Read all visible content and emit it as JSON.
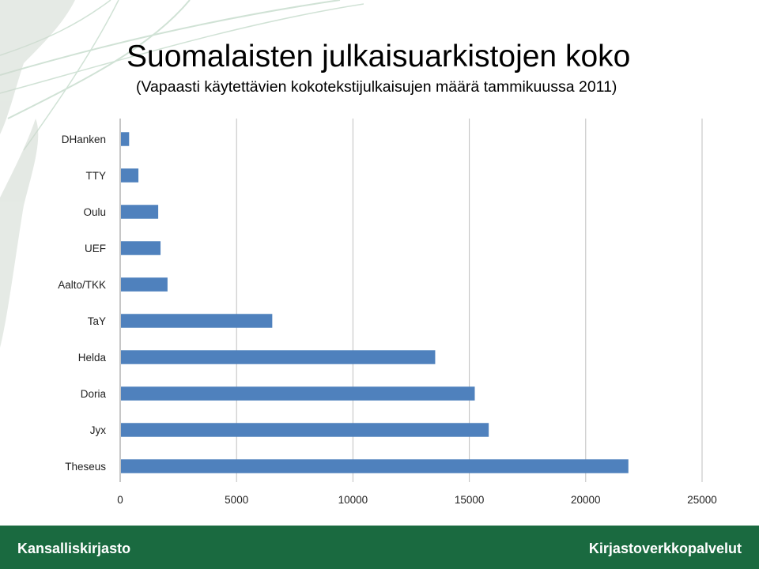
{
  "slide": {
    "title": "Suomalaisten julkaisuarkistojen koko",
    "subtitle": "(Vapaasti käytettävien kokotekstijulkaisujen määrä tammikuussa 2011)"
  },
  "footer": {
    "left_logo_text": "Kansalliskirjasto",
    "right_logo_text": "Kirjastoverkkopalvelut"
  },
  "colors": {
    "bar": "#4f81bd",
    "footer_bg": "#1a6a40",
    "gridline": "#bfbfbf"
  },
  "chart_data": {
    "type": "bar",
    "orientation": "horizontal",
    "title": "",
    "xlabel": "",
    "ylabel": "",
    "categories": [
      "DHanken",
      "TTY",
      "Oulu",
      "UEF",
      "Aalto/TKK",
      "TaY",
      "Helda",
      "Doria",
      "Jyx",
      "Theseus"
    ],
    "values": [
      350,
      750,
      1600,
      1700,
      2000,
      6500,
      13500,
      15200,
      15800,
      21800
    ],
    "xlim": [
      0,
      25000
    ],
    "xticks": [
      "0",
      "5000",
      "10000",
      "15000",
      "20000",
      "25000"
    ],
    "grid": true,
    "legend": "none"
  }
}
